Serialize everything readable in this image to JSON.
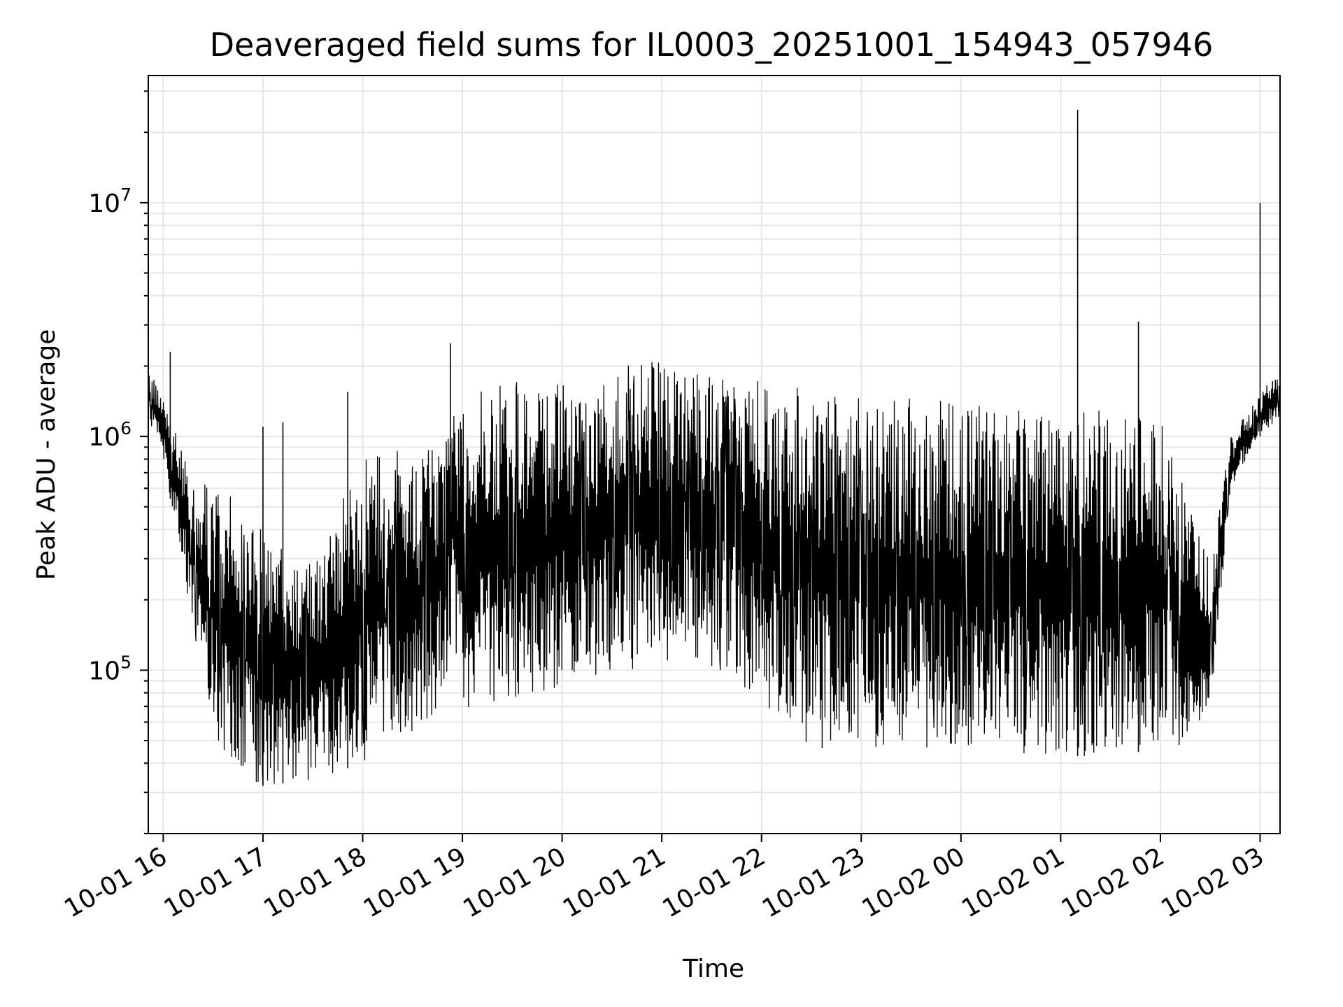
{
  "chart_data": {
    "type": "line",
    "title": "Deaveraged field sums for IL0003_20251001_154943_057946",
    "xlabel": "Time",
    "ylabel": "Peak ADU - average",
    "yscale": "log",
    "xlim_hours": [
      -0.15,
      11.2
    ],
    "ylim": [
      20000,
      35000000
    ],
    "grid": true,
    "line_color": "#000000",
    "x_ticks": [
      {
        "h": 0,
        "label": "10-01 16"
      },
      {
        "h": 1,
        "label": "10-01 17"
      },
      {
        "h": 2,
        "label": "10-01 18"
      },
      {
        "h": 3,
        "label": "10-01 19"
      },
      {
        "h": 4,
        "label": "10-01 20"
      },
      {
        "h": 5,
        "label": "10-01 21"
      },
      {
        "h": 6,
        "label": "10-01 22"
      },
      {
        "h": 7,
        "label": "10-01 23"
      },
      {
        "h": 8,
        "label": "10-02 00"
      },
      {
        "h": 9,
        "label": "10-02 01"
      },
      {
        "h": 10,
        "label": "10-02 02"
      },
      {
        "h": 11,
        "label": "10-02 03"
      }
    ],
    "y_ticks": [
      {
        "value": 100000,
        "base": "10",
        "exp": "5"
      },
      {
        "value": 1000000,
        "base": "10",
        "exp": "6"
      },
      {
        "value": 10000000,
        "base": "10",
        "exp": "7"
      }
    ],
    "series": [
      {
        "name": "Peak ADU - average",
        "envelope_hours": [
          -0.15,
          0.0,
          0.3,
          0.6,
          1.0,
          1.5,
          2.0,
          2.5,
          2.8,
          2.9,
          3.0,
          3.5,
          4.0,
          4.5,
          5.0,
          5.5,
          5.9,
          6.1,
          6.5,
          7.0,
          7.5,
          8.0,
          8.5,
          9.0,
          9.5,
          10.0,
          10.3,
          10.5,
          10.7,
          11.0,
          11.2
        ],
        "envelope_upper": [
          2000000,
          1500000,
          650000,
          600000,
          400000,
          300000,
          800000,
          900000,
          1000000,
          1300000,
          1500000,
          1700000,
          1800000,
          2000000,
          2100000,
          2000000,
          1800000,
          1700000,
          1600000,
          1500000,
          1500000,
          1400000,
          1400000,
          1300000,
          1300000,
          1200000,
          500000,
          300000,
          1000000,
          1500000,
          2000000
        ],
        "envelope_lower": [
          1200000,
          800000,
          150000,
          40000,
          32000,
          34000,
          40000,
          55000,
          70000,
          150000,
          65000,
          75000,
          85000,
          95000,
          110000,
          95000,
          80000,
          60000,
          45000,
          45000,
          44000,
          43000,
          43000,
          43000,
          43000,
          46000,
          45000,
          65000,
          600000,
          1000000,
          1200000
        ],
        "spikes": [
          {
            "h": 0.07,
            "value": 2300000
          },
          {
            "h": 1.0,
            "value": 1100000
          },
          {
            "h": 1.2,
            "value": 1150000
          },
          {
            "h": 1.85,
            "value": 1550000
          },
          {
            "h": 2.88,
            "value": 2500000
          },
          {
            "h": 9.17,
            "value": 25000000
          },
          {
            "h": 9.78,
            "value": 3100000
          },
          {
            "h": 11.0,
            "value": 10000000
          }
        ]
      }
    ]
  }
}
